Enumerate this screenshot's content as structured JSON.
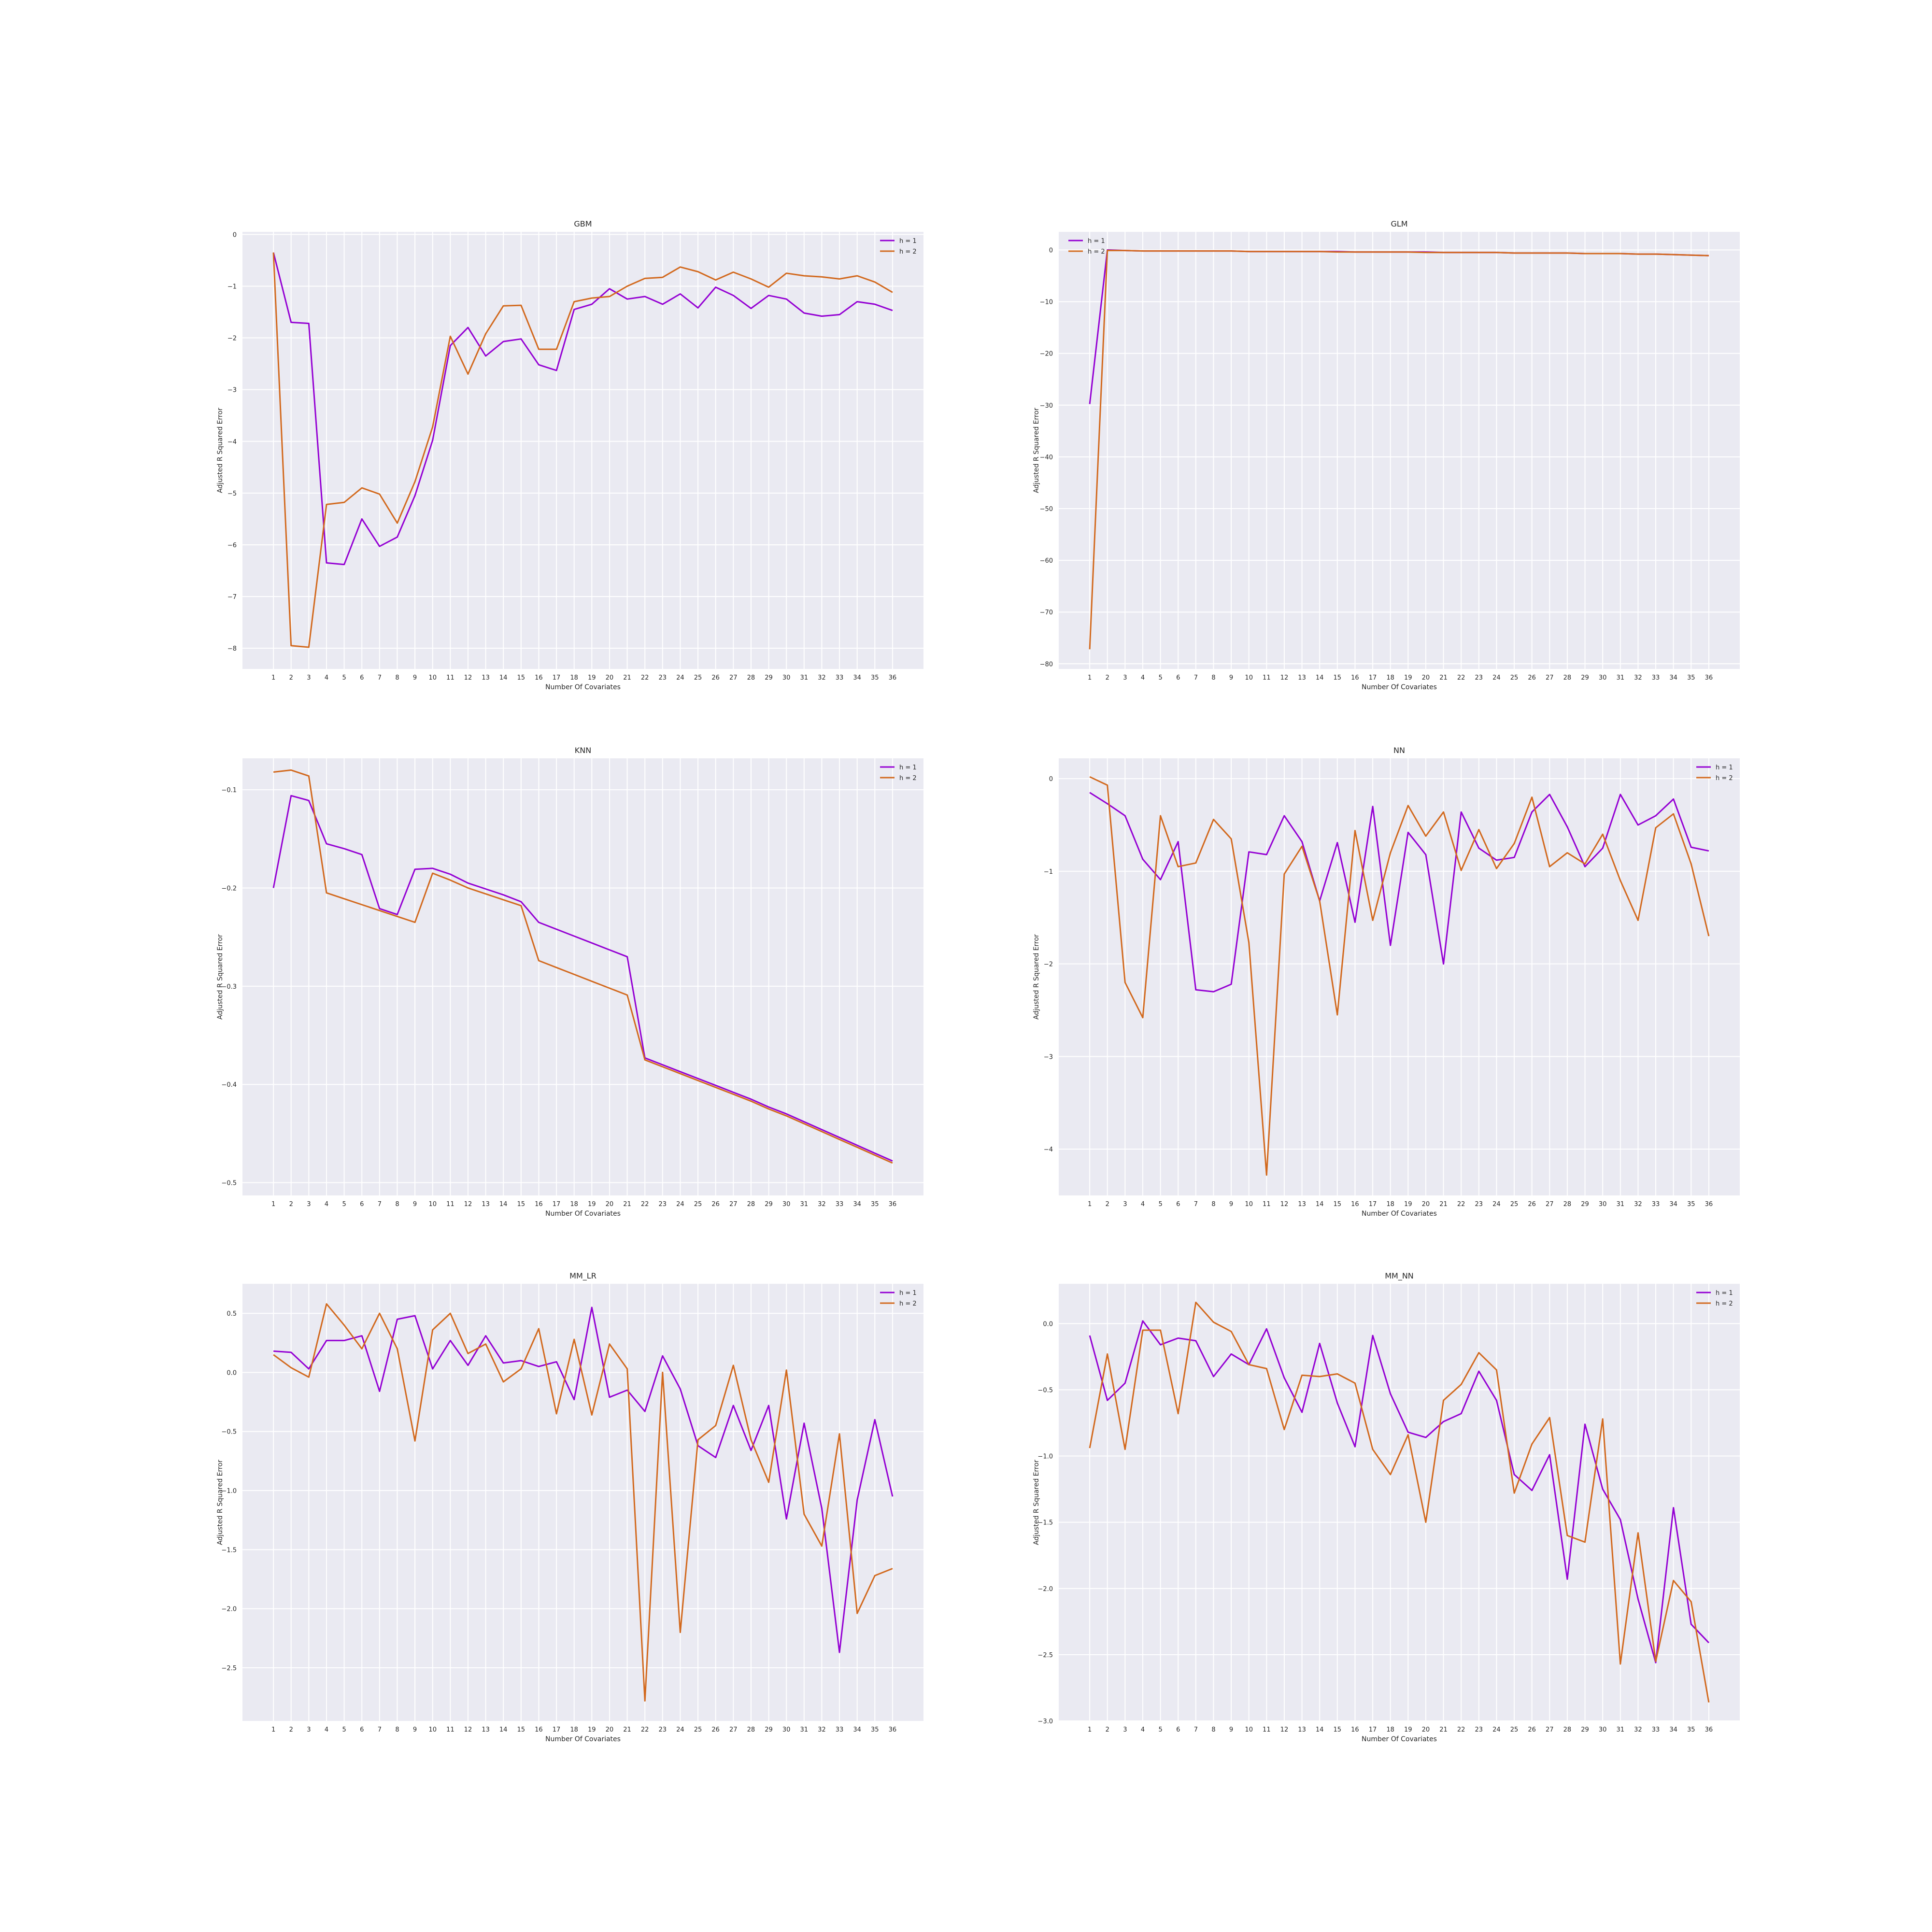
{
  "colors": {
    "h1": "#9400d3",
    "h2": "#d2691e"
  },
  "chart_data": [
    {
      "type": "line",
      "title": "GBM",
      "xlabel": "Number Of Covariates",
      "ylabel": "Adjusted R Squared Error",
      "ylim": [
        -8.4,
        0.05
      ],
      "yticks": [
        0,
        -1,
        -2,
        -3,
        -4,
        -5,
        -6,
        -7,
        -8
      ],
      "ytick_labels": [
        "0",
        "−1",
        "−2",
        "−3",
        "−4",
        "−5",
        "−6",
        "−7",
        "−8"
      ],
      "legend_position": "upper right",
      "x": [
        1,
        2,
        3,
        4,
        5,
        6,
        7,
        8,
        9,
        10,
        11,
        12,
        13,
        14,
        15,
        16,
        17,
        18,
        19,
        20,
        21,
        22,
        23,
        24,
        25,
        26,
        27,
        28,
        29,
        30,
        31,
        32,
        33,
        34,
        35,
        36
      ],
      "series": [
        {
          "name": "h = 1",
          "color": "#9400d3",
          "values": [
            -0.35,
            -1.7,
            -1.72,
            -6.35,
            -6.38,
            -5.5,
            -6.03,
            -5.85,
            -5.05,
            -3.98,
            -2.15,
            -1.8,
            -2.35,
            -2.07,
            -2.02,
            -2.52,
            -2.63,
            -1.45,
            -1.35,
            -1.05,
            -1.25,
            -1.2,
            -1.35,
            -1.15,
            -1.42,
            -1.02,
            -1.18,
            -1.43,
            -1.18,
            -1.25,
            -1.52,
            -1.58,
            -1.55,
            -1.3,
            -1.35,
            -1.47
          ]
        },
        {
          "name": "h = 2",
          "color": "#d2691e",
          "values": [
            -0.35,
            -7.95,
            -7.98,
            -5.22,
            -5.18,
            -4.9,
            -5.02,
            -5.58,
            -4.78,
            -3.72,
            -1.97,
            -2.7,
            -1.92,
            -1.38,
            -1.37,
            -2.22,
            -2.22,
            -1.3,
            -1.23,
            -1.2,
            -1.0,
            -0.85,
            -0.83,
            -0.63,
            -0.72,
            -0.88,
            -0.73,
            -0.86,
            -1.02,
            -0.75,
            -0.8,
            -0.82,
            -0.86,
            -0.8,
            -0.92,
            -1.12
          ]
        }
      ]
    },
    {
      "type": "line",
      "title": "GLM",
      "xlabel": "Number Of Covariates",
      "ylabel": "Adjusted R Squared Error",
      "ylim": [
        -81,
        3.5
      ],
      "yticks": [
        0,
        -10,
        -20,
        -30,
        -40,
        -50,
        -60,
        -70,
        -80
      ],
      "ytick_labels": [
        "0",
        "−10",
        "−20",
        "−30",
        "−40",
        "−50",
        "−60",
        "−70",
        "−80"
      ],
      "legend_position": "upper left",
      "x": [
        1,
        2,
        3,
        4,
        5,
        6,
        7,
        8,
        9,
        10,
        11,
        12,
        13,
        14,
        15,
        16,
        17,
        18,
        19,
        20,
        21,
        22,
        23,
        24,
        25,
        26,
        27,
        28,
        29,
        30,
        31,
        32,
        33,
        34,
        35,
        36
      ],
      "series": [
        {
          "name": "h = 1",
          "color": "#9400d3",
          "values": [
            -29.8,
            0.0,
            -0.1,
            -0.2,
            -0.2,
            -0.2,
            -0.2,
            -0.2,
            -0.2,
            -0.3,
            -0.3,
            -0.3,
            -0.3,
            -0.3,
            -0.3,
            -0.4,
            -0.4,
            -0.4,
            -0.4,
            -0.4,
            -0.5,
            -0.5,
            -0.5,
            -0.5,
            -0.6,
            -0.6,
            -0.6,
            -0.6,
            -0.7,
            -0.7,
            -0.7,
            -0.8,
            -0.8,
            -0.9,
            -1.0,
            -1.1
          ]
        },
        {
          "name": "h = 2",
          "color": "#d2691e",
          "values": [
            -77.2,
            -0.1,
            -0.1,
            -0.2,
            -0.2,
            -0.2,
            -0.2,
            -0.2,
            -0.2,
            -0.3,
            -0.3,
            -0.3,
            -0.3,
            -0.3,
            -0.4,
            -0.4,
            -0.4,
            -0.4,
            -0.4,
            -0.5,
            -0.5,
            -0.5,
            -0.5,
            -0.5,
            -0.6,
            -0.6,
            -0.6,
            -0.6,
            -0.7,
            -0.7,
            -0.7,
            -0.8,
            -0.8,
            -0.9,
            -1.0,
            -1.1
          ]
        }
      ]
    },
    {
      "type": "line",
      "title": "KNN",
      "xlabel": "Number Of Covariates",
      "ylabel": "Adjusted R Squared Error",
      "ylim": [
        -0.513,
        -0.068
      ],
      "yticks": [
        -0.1,
        -0.2,
        -0.3,
        -0.4,
        -0.5
      ],
      "ytick_labels": [
        "−0.1",
        "−0.2",
        "−0.3",
        "−0.4",
        "−0.5"
      ],
      "legend_position": "upper right",
      "x": [
        1,
        2,
        3,
        4,
        5,
        6,
        7,
        8,
        9,
        10,
        11,
        12,
        13,
        14,
        15,
        16,
        17,
        18,
        19,
        20,
        21,
        22,
        23,
        24,
        25,
        26,
        27,
        28,
        29,
        30,
        31,
        32,
        33,
        34,
        35,
        36
      ],
      "series": [
        {
          "name": "h = 1",
          "color": "#9400d3",
          "values": [
            -0.2,
            -0.106,
            -0.111,
            -0.155,
            -0.16,
            -0.166,
            -0.221,
            -0.227,
            -0.181,
            -0.18,
            -0.186,
            -0.195,
            -0.201,
            -0.207,
            -0.214,
            -0.235,
            -0.242,
            -0.249,
            -0.256,
            -0.263,
            -0.27,
            -0.373,
            -0.38,
            -0.387,
            -0.394,
            -0.401,
            -0.408,
            -0.415,
            -0.423,
            -0.43,
            -0.438,
            -0.446,
            -0.454,
            -0.462,
            -0.47,
            -0.478
          ]
        },
        {
          "name": "h = 2",
          "color": "#d2691e",
          "values": [
            -0.082,
            -0.08,
            -0.086,
            -0.205,
            -0.211,
            -0.217,
            -0.223,
            -0.229,
            -0.235,
            -0.185,
            -0.192,
            -0.2,
            -0.206,
            -0.212,
            -0.218,
            -0.274,
            -0.281,
            -0.288,
            -0.295,
            -0.302,
            -0.309,
            -0.375,
            -0.382,
            -0.389,
            -0.396,
            -0.403,
            -0.41,
            -0.417,
            -0.425,
            -0.432,
            -0.44,
            -0.448,
            -0.456,
            -0.464,
            -0.472,
            -0.48
          ]
        }
      ]
    },
    {
      "type": "line",
      "title": "NN",
      "xlabel": "Number Of Covariates",
      "ylabel": "Adjusted R Squared Error",
      "ylim": [
        -4.5,
        0.22
      ],
      "yticks": [
        0,
        -1,
        -2,
        -3,
        -4
      ],
      "ytick_labels": [
        "0",
        "−1",
        "−2",
        "−3",
        "−4"
      ],
      "legend_position": "upper right",
      "x": [
        1,
        2,
        3,
        4,
        5,
        6,
        7,
        8,
        9,
        10,
        11,
        12,
        13,
        14,
        15,
        16,
        17,
        18,
        19,
        20,
        21,
        22,
        23,
        24,
        25,
        26,
        27,
        28,
        29,
        30,
        31,
        32,
        33,
        34,
        35,
        36
      ],
      "series": [
        {
          "name": "h = 1",
          "color": "#9400d3",
          "values": [
            -0.15,
            -0.27,
            -0.4,
            -0.87,
            -1.09,
            -0.68,
            -2.28,
            -2.3,
            -2.22,
            -0.79,
            -0.82,
            -0.4,
            -0.68,
            -1.32,
            -0.69,
            -1.55,
            -0.3,
            -1.8,
            -0.58,
            -0.82,
            -2.0,
            -0.36,
            -0.75,
            -0.88,
            -0.85,
            -0.36,
            -0.17,
            -0.52,
            -0.95,
            -0.75,
            -0.17,
            -0.5,
            -0.4,
            -0.22,
            -0.74,
            -0.78
          ]
        },
        {
          "name": "h = 2",
          "color": "#d2691e",
          "values": [
            0.02,
            -0.07,
            -2.2,
            -2.58,
            -0.4,
            -0.95,
            -0.91,
            -0.44,
            -0.65,
            -1.77,
            -4.28,
            -1.03,
            -0.73,
            -1.32,
            -2.55,
            -0.56,
            -1.53,
            -0.8,
            -0.29,
            -0.62,
            -0.36,
            -0.99,
            -0.55,
            -0.97,
            -0.7,
            -0.2,
            -0.95,
            -0.8,
            -0.92,
            -0.6,
            -1.1,
            -1.53,
            -0.53,
            -0.38,
            -0.92,
            -1.7
          ]
        }
      ]
    },
    {
      "type": "line",
      "title": "MM_LR",
      "xlabel": "Number Of Covariates",
      "ylabel": "Adjusted R Squared Error",
      "ylim": [
        -2.95,
        0.75
      ],
      "yticks": [
        0.5,
        0.0,
        -0.5,
        -1.0,
        -1.5,
        -2.0,
        -2.5
      ],
      "ytick_labels": [
        "0.5",
        "0.0",
        "−0.5",
        "−1.0",
        "−1.5",
        "−2.0",
        "−2.5"
      ],
      "legend_position": "upper right",
      "x": [
        1,
        2,
        3,
        4,
        5,
        6,
        7,
        8,
        9,
        10,
        11,
        12,
        13,
        14,
        15,
        16,
        17,
        18,
        19,
        20,
        21,
        22,
        23,
        24,
        25,
        26,
        27,
        28,
        29,
        30,
        31,
        32,
        33,
        34,
        35,
        36
      ],
      "series": [
        {
          "name": "h = 1",
          "color": "#9400d3",
          "values": [
            0.18,
            0.17,
            0.03,
            0.27,
            0.27,
            0.31,
            -0.16,
            0.45,
            0.48,
            0.03,
            0.27,
            0.06,
            0.31,
            0.08,
            0.1,
            0.05,
            0.09,
            -0.23,
            0.55,
            -0.21,
            -0.15,
            -0.33,
            0.14,
            -0.14,
            -0.62,
            -0.72,
            -0.28,
            -0.66,
            -0.28,
            -1.24,
            -0.43,
            -1.15,
            -2.37,
            -1.08,
            -0.4,
            -1.05
          ]
        },
        {
          "name": "h = 2",
          "color": "#d2691e",
          "values": [
            0.15,
            0.04,
            -0.04,
            0.58,
            0.4,
            0.2,
            0.5,
            0.2,
            -0.58,
            0.36,
            0.5,
            0.16,
            0.24,
            -0.08,
            0.03,
            0.37,
            -0.35,
            0.28,
            -0.36,
            0.24,
            0.03,
            -2.78,
            0.0,
            -2.2,
            -0.57,
            -0.45,
            0.06,
            -0.57,
            -0.93,
            0.02,
            -1.2,
            -1.47,
            -0.52,
            -2.04,
            -1.72,
            -1.66
          ]
        }
      ]
    },
    {
      "type": "line",
      "title": "MM_NN",
      "xlabel": "Number Of Covariates",
      "ylabel": "Adjusted R Squared Error",
      "ylim": [
        -3.0,
        0.3
      ],
      "yticks": [
        0.0,
        -0.5,
        -1.0,
        -1.5,
        -2.0,
        -2.5,
        -3.0
      ],
      "ytick_labels": [
        "0.0",
        "−0.5",
        "−1.0",
        "−1.5",
        "−2.0",
        "−2.5",
        "−3.0"
      ],
      "legend_position": "upper right",
      "x": [
        1,
        2,
        3,
        4,
        5,
        6,
        7,
        8,
        9,
        10,
        11,
        12,
        13,
        14,
        15,
        16,
        17,
        18,
        19,
        20,
        21,
        22,
        23,
        24,
        25,
        26,
        27,
        28,
        29,
        30,
        31,
        32,
        33,
        34,
        35,
        36
      ],
      "series": [
        {
          "name": "h = 1",
          "color": "#9400d3",
          "values": [
            -0.09,
            -0.58,
            -0.45,
            0.02,
            -0.16,
            -0.11,
            -0.13,
            -0.4,
            -0.23,
            -0.31,
            -0.04,
            -0.41,
            -0.67,
            -0.15,
            -0.6,
            -0.93,
            -0.09,
            -0.53,
            -0.82,
            -0.86,
            -0.74,
            -0.68,
            -0.36,
            -0.58,
            -1.14,
            -1.26,
            -0.99,
            -1.93,
            -0.76,
            -1.25,
            -1.48,
            -2.08,
            -2.56,
            -1.39,
            -2.27,
            -2.41
          ]
        },
        {
          "name": "h = 2",
          "color": "#d2691e",
          "values": [
            -0.94,
            -0.23,
            -0.95,
            -0.05,
            -0.05,
            -0.68,
            0.16,
            0.01,
            -0.06,
            -0.31,
            -0.34,
            -0.8,
            -0.39,
            -0.4,
            -0.38,
            -0.45,
            -0.95,
            -1.14,
            -0.84,
            -1.5,
            -0.58,
            -0.46,
            -0.22,
            -0.35,
            -1.28,
            -0.91,
            -0.71,
            -1.6,
            -1.65,
            -0.72,
            -2.57,
            -1.58,
            -2.55,
            -1.94,
            -2.1,
            -2.86
          ]
        }
      ]
    }
  ]
}
